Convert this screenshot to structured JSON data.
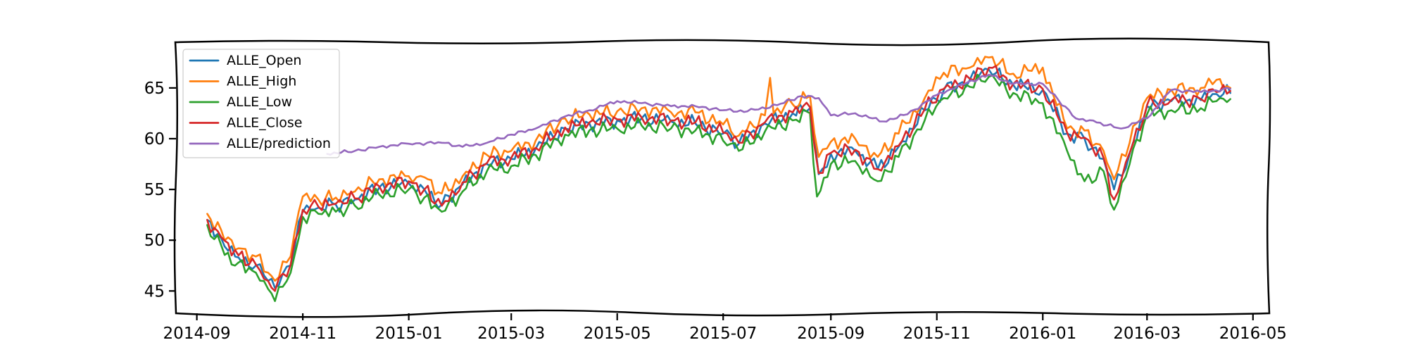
{
  "chart_data": {
    "type": "line",
    "title": "",
    "xlabel": "",
    "ylabel": "",
    "style": "xkcd",
    "grid": false,
    "legend_position": "upper-left",
    "xlim": [
      "2014-08-20",
      "2016-05-10"
    ],
    "ylim": [
      42.8,
      69.5
    ],
    "x_ticks": [
      "2014-09",
      "2014-11",
      "2015-01",
      "2015-03",
      "2015-05",
      "2015-07",
      "2015-09",
      "2015-11",
      "2016-01",
      "2016-03",
      "2016-05"
    ],
    "y_ticks": [
      45,
      50,
      55,
      60,
      65
    ],
    "series": [
      {
        "name": "ALLE_Open",
        "color": "#1f77b4",
        "x": [
          "2014-09-07",
          "2014-09-15",
          "2014-09-25",
          "2014-10-05",
          "2014-10-12",
          "2014-10-16",
          "2014-10-25",
          "2014-11-01",
          "2014-11-10",
          "2014-11-20",
          "2014-12-01",
          "2014-12-15",
          "2015-01-01",
          "2015-01-10",
          "2015-01-20",
          "2015-02-01",
          "2015-02-15",
          "2015-03-01",
          "2015-03-15",
          "2015-04-01",
          "2015-04-15",
          "2015-05-01",
          "2015-05-15",
          "2015-06-01",
          "2015-06-15",
          "2015-07-01",
          "2015-07-10",
          "2015-07-25",
          "2015-08-10",
          "2015-08-20",
          "2015-08-25",
          "2015-09-01",
          "2015-09-15",
          "2015-09-28",
          "2015-10-10",
          "2015-10-25",
          "2015-11-05",
          "2015-11-20",
          "2015-12-01",
          "2015-12-15",
          "2016-01-01",
          "2016-01-15",
          "2016-01-25",
          "2016-02-05",
          "2016-02-11",
          "2016-02-20",
          "2016-03-01",
          "2016-03-15",
          "2016-04-01",
          "2016-04-10",
          "2016-04-18"
        ],
        "y": [
          52.0,
          50.2,
          48.3,
          47.5,
          46.0,
          45.3,
          47.5,
          52.8,
          53.2,
          53.5,
          54.0,
          55.2,
          55.6,
          55.0,
          53.5,
          55.5,
          57.5,
          58.0,
          59.0,
          61.0,
          61.5,
          61.8,
          62.0,
          61.7,
          61.5,
          60.5,
          59.5,
          61.5,
          62.5,
          63.0,
          56.5,
          58.5,
          58.8,
          57.0,
          59.2,
          62.8,
          64.8,
          65.8,
          66.8,
          65.3,
          64.8,
          60.5,
          60.0,
          58.0,
          55.0,
          58.5,
          63.2,
          63.7,
          63.8,
          64.4,
          64.5
        ]
      },
      {
        "name": "ALLE_High",
        "color": "#ff7f0e",
        "x": [
          "2014-09-07",
          "2014-09-15",
          "2014-09-25",
          "2014-10-05",
          "2014-10-12",
          "2014-10-16",
          "2014-10-25",
          "2014-11-01",
          "2014-11-10",
          "2014-11-20",
          "2014-12-01",
          "2014-12-15",
          "2015-01-01",
          "2015-01-10",
          "2015-01-20",
          "2015-02-01",
          "2015-02-15",
          "2015-03-01",
          "2015-03-15",
          "2015-04-01",
          "2015-04-15",
          "2015-05-01",
          "2015-05-15",
          "2015-06-01",
          "2015-06-15",
          "2015-07-01",
          "2015-07-10",
          "2015-07-25",
          "2015-07-28",
          "2015-07-30",
          "2015-08-10",
          "2015-08-20",
          "2015-08-25",
          "2015-09-01",
          "2015-09-15",
          "2015-09-28",
          "2015-10-10",
          "2015-10-25",
          "2015-11-05",
          "2015-11-20",
          "2015-12-01",
          "2015-12-15",
          "2016-01-01",
          "2016-01-15",
          "2016-01-25",
          "2016-02-05",
          "2016-02-11",
          "2016-02-20",
          "2016-03-01",
          "2016-03-15",
          "2016-04-01",
          "2016-04-10",
          "2016-04-18"
        ],
        "y": [
          52.6,
          51.0,
          49.2,
          48.4,
          46.8,
          46.0,
          48.4,
          54.3,
          54.0,
          54.2,
          54.8,
          56.0,
          56.3,
          56.2,
          54.6,
          56.3,
          58.4,
          58.8,
          59.8,
          62.0,
          62.4,
          62.7,
          63.0,
          62.6,
          62.6,
          61.4,
          60.3,
          62.3,
          66.0,
          62.5,
          63.4,
          64.2,
          58.2,
          59.7,
          60.0,
          58.2,
          60.5,
          64.0,
          66.5,
          67.0,
          68.0,
          66.4,
          67.0,
          61.0,
          60.8,
          58.8,
          56.0,
          59.6,
          64.0,
          64.8,
          65.0,
          65.8,
          65.0
        ]
      },
      {
        "name": "ALLE_Low",
        "color": "#2ca02c",
        "x": [
          "2014-09-07",
          "2014-09-15",
          "2014-09-23",
          "2014-09-25",
          "2014-10-05",
          "2014-10-12",
          "2014-10-16",
          "2014-10-25",
          "2014-11-01",
          "2014-11-10",
          "2014-11-20",
          "2014-12-01",
          "2014-12-15",
          "2015-01-01",
          "2015-01-10",
          "2015-01-20",
          "2015-02-01",
          "2015-02-15",
          "2015-03-01",
          "2015-03-15",
          "2015-04-01",
          "2015-04-15",
          "2015-05-01",
          "2015-05-15",
          "2015-06-01",
          "2015-06-15",
          "2015-07-01",
          "2015-07-10",
          "2015-07-25",
          "2015-08-10",
          "2015-08-20",
          "2015-08-24",
          "2015-09-01",
          "2015-09-15",
          "2015-09-28",
          "2015-10-10",
          "2015-10-25",
          "2015-11-05",
          "2015-11-20",
          "2015-12-01",
          "2015-12-15",
          "2016-01-01",
          "2016-01-15",
          "2016-01-25",
          "2016-02-05",
          "2016-02-11",
          "2016-02-20",
          "2016-03-01",
          "2016-03-15",
          "2016-04-01",
          "2016-04-10",
          "2016-04-18"
        ],
        "y": [
          51.5,
          49.5,
          47.5,
          47.8,
          46.8,
          45.2,
          44.0,
          46.8,
          52.3,
          52.6,
          52.8,
          53.4,
          54.5,
          55.0,
          54.2,
          52.8,
          54.8,
          56.8,
          57.3,
          58.4,
          60.4,
          60.8,
          61.0,
          61.3,
          61.0,
          60.8,
          59.8,
          58.8,
          60.7,
          61.8,
          62.5,
          54.3,
          57.5,
          57.8,
          55.8,
          58.2,
          61.8,
          64.0,
          65.1,
          66.1,
          64.5,
          63.5,
          58.8,
          55.8,
          56.8,
          53.0,
          57.5,
          62.4,
          62.8,
          63.0,
          63.7,
          63.9
        ]
      },
      {
        "name": "ALLE_Close",
        "color": "#d62728",
        "x": [
          "2014-09-07",
          "2014-09-15",
          "2014-09-25",
          "2014-10-05",
          "2014-10-12",
          "2014-10-16",
          "2014-10-25",
          "2014-11-01",
          "2014-11-10",
          "2014-11-20",
          "2014-12-01",
          "2014-12-15",
          "2015-01-01",
          "2015-01-10",
          "2015-01-20",
          "2015-02-01",
          "2015-02-15",
          "2015-03-01",
          "2015-03-15",
          "2015-04-01",
          "2015-04-15",
          "2015-05-01",
          "2015-05-15",
          "2015-06-01",
          "2015-06-15",
          "2015-07-01",
          "2015-07-10",
          "2015-07-25",
          "2015-08-10",
          "2015-08-20",
          "2015-08-25",
          "2015-09-01",
          "2015-09-15",
          "2015-09-28",
          "2015-10-10",
          "2015-10-25",
          "2015-11-05",
          "2015-11-20",
          "2015-12-01",
          "2015-12-15",
          "2016-01-01",
          "2016-01-15",
          "2016-01-25",
          "2016-02-05",
          "2016-02-11",
          "2016-02-20",
          "2016-03-01",
          "2016-03-15",
          "2016-04-01",
          "2016-04-10",
          "2016-04-18"
        ],
        "y": [
          52.0,
          50.3,
          48.5,
          47.6,
          46.0,
          45.0,
          47.6,
          53.0,
          53.3,
          53.6,
          54.1,
          55.3,
          55.8,
          55.0,
          53.4,
          55.7,
          57.6,
          58.1,
          59.1,
          61.1,
          61.6,
          61.9,
          62.1,
          61.8,
          61.6,
          60.6,
          59.6,
          61.6,
          62.6,
          63.1,
          56.6,
          58.6,
          58.9,
          57.0,
          59.3,
          62.9,
          64.9,
          65.9,
          67.0,
          65.4,
          64.9,
          60.6,
          60.1,
          58.1,
          54.0,
          58.6,
          63.3,
          63.8,
          63.9,
          64.6,
          64.7
        ]
      },
      {
        "name": "ALLE/prediction",
        "color": "#9467bd",
        "x": [
          "2014-11-15",
          "2014-12-01",
          "2014-12-15",
          "2015-01-01",
          "2015-01-20",
          "2015-02-01",
          "2015-02-15",
          "2015-03-01",
          "2015-03-15",
          "2015-04-01",
          "2015-04-15",
          "2015-05-01",
          "2015-05-15",
          "2015-06-01",
          "2015-06-15",
          "2015-07-01",
          "2015-07-15",
          "2015-08-01",
          "2015-08-15",
          "2015-08-25",
          "2015-09-01",
          "2015-09-15",
          "2015-10-01",
          "2015-10-15",
          "2015-11-01",
          "2015-11-15",
          "2015-12-01",
          "2015-12-15",
          "2016-01-01",
          "2016-01-10",
          "2016-01-20",
          "2016-02-01",
          "2016-02-15",
          "2016-03-01",
          "2016-03-15",
          "2016-04-01",
          "2016-04-18"
        ],
        "y": [
          58.5,
          58.8,
          59.2,
          59.5,
          59.6,
          59.2,
          59.6,
          60.4,
          61.0,
          62.2,
          62.8,
          63.7,
          63.5,
          63.2,
          63.2,
          62.8,
          62.7,
          63.3,
          64.2,
          64.0,
          62.3,
          62.5,
          61.7,
          62.4,
          64.3,
          65.3,
          66.3,
          65.4,
          65.4,
          63.8,
          62.0,
          61.6,
          61.0,
          62.0,
          64.8,
          64.6,
          64.9
        ]
      }
    ]
  }
}
